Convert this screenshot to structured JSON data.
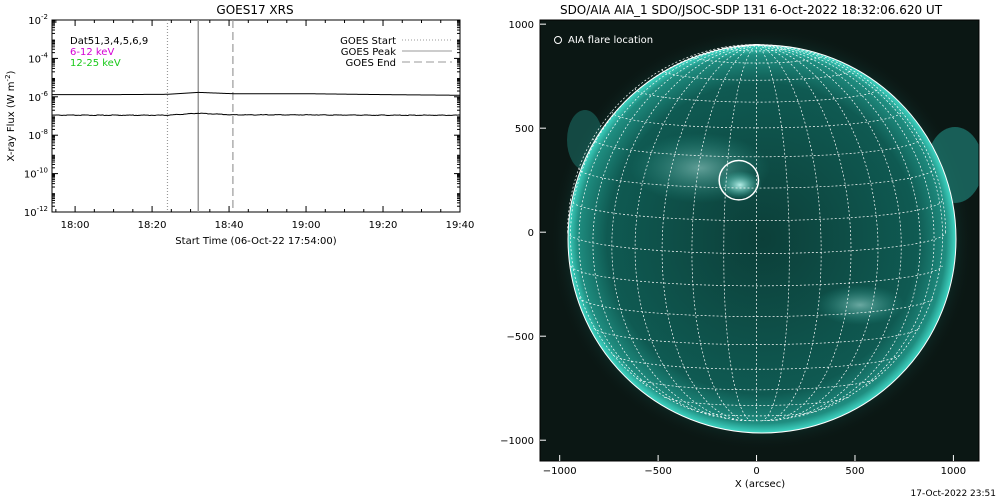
{
  "left_panel": {
    "title": "GOES17 XRS",
    "ylabel": "X-ray Flux (W m",
    "ylabel_sup": "-2",
    "ylabel_close": ")",
    "xlabel": "Start Time (06-Oct-22 17:54:00)",
    "legend_left": [
      {
        "text": "Dat51,3,4,5,6,9",
        "color": "#000000"
      },
      {
        "text": "6-12 keV",
        "color": "#d400d4"
      },
      {
        "text": "12-25 keV",
        "color": "#19c919"
      }
    ],
    "legend_right": [
      {
        "text": "GOES Start",
        "style": "dotted"
      },
      {
        "text": "GOES Peak",
        "style": "solid"
      },
      {
        "text": "GOES End",
        "style": "dashed"
      }
    ]
  },
  "right_panel": {
    "title": "SDO/AIA AIA_1 SDO/JSOC-SDP 131  6-Oct-2022 18:32:06.620 UT",
    "legend": "AIA flare location",
    "xlabel": "X (arcsec)",
    "colors": {
      "background": "#0b1714",
      "disk": "#0e4a43",
      "limb": "#2fbfae",
      "active": "#9ff5ec"
    }
  },
  "footer": {
    "timestamp": "17-Oct-2022 23:51"
  },
  "chart_data": [
    {
      "type": "line",
      "title": "GOES17 XRS",
      "xlabel": "Start Time (06-Oct-22 17:54:00)",
      "ylabel": "X-ray Flux (W m^-2)",
      "yscale": "log",
      "xlim": [
        "17:54",
        "19:40"
      ],
      "ylim": [
        1e-12,
        0.01
      ],
      "x_ticks": [
        "18:00",
        "18:20",
        "18:40",
        "19:00",
        "19:20",
        "19:40"
      ],
      "y_ticks": [
        {
          "base": "10",
          "exp": "-2",
          "value": 0.01
        },
        {
          "base": "10",
          "exp": "-4",
          "value": 0.0001
        },
        {
          "base": "10",
          "exp": "-6",
          "value": 1e-06
        },
        {
          "base": "10",
          "exp": "-8",
          "value": 1e-08
        },
        {
          "base": "10",
          "exp": "-10",
          "value": 1e-10
        },
        {
          "base": "10",
          "exp": "-12",
          "value": 1e-12
        }
      ],
      "vlines": [
        {
          "name": "GOES Start",
          "x": "18:24",
          "style": "dotted"
        },
        {
          "name": "GOES Peak",
          "x": "18:32",
          "style": "solid"
        },
        {
          "name": "GOES End",
          "x": "18:41",
          "style": "dashed"
        }
      ],
      "series": [
        {
          "name": "6-12 keV",
          "x": [
            "17:54",
            "18:10",
            "18:24",
            "18:32",
            "18:41",
            "19:00",
            "19:20",
            "19:40"
          ],
          "values": [
            1.3e-06,
            1.3e-06,
            1.35e-06,
            1.7e-06,
            1.45e-06,
            1.45e-06,
            1.3e-06,
            1.2e-06
          ]
        },
        {
          "name": "12-25 keV",
          "x": [
            "17:54",
            "18:10",
            "18:24",
            "18:32",
            "18:41",
            "19:00",
            "19:20",
            "19:40"
          ],
          "values": [
            1.1e-07,
            1.1e-07,
            1.1e-07,
            1.4e-07,
            1.15e-07,
            1.15e-07,
            1.1e-07,
            1.1e-07
          ]
        }
      ]
    },
    {
      "type": "scatter",
      "title": "SDO/AIA AIA_1 SDO/JSOC-SDP 131  6-Oct-2022 18:32:06.620 UT",
      "xlabel": "X (arcsec)",
      "ylabel": "",
      "xlim": [
        -1100,
        1130
      ],
      "ylim": [
        -1100,
        1020
      ],
      "x_ticks": [
        -1000,
        -500,
        0,
        500,
        1000
      ],
      "y_ticks": [
        1000,
        500,
        0,
        -500,
        -1000
      ],
      "solar_radius": 960,
      "series": [
        {
          "name": "AIA flare location",
          "x": [
            -90
          ],
          "y": [
            250
          ],
          "radius": 100
        }
      ]
    }
  ]
}
